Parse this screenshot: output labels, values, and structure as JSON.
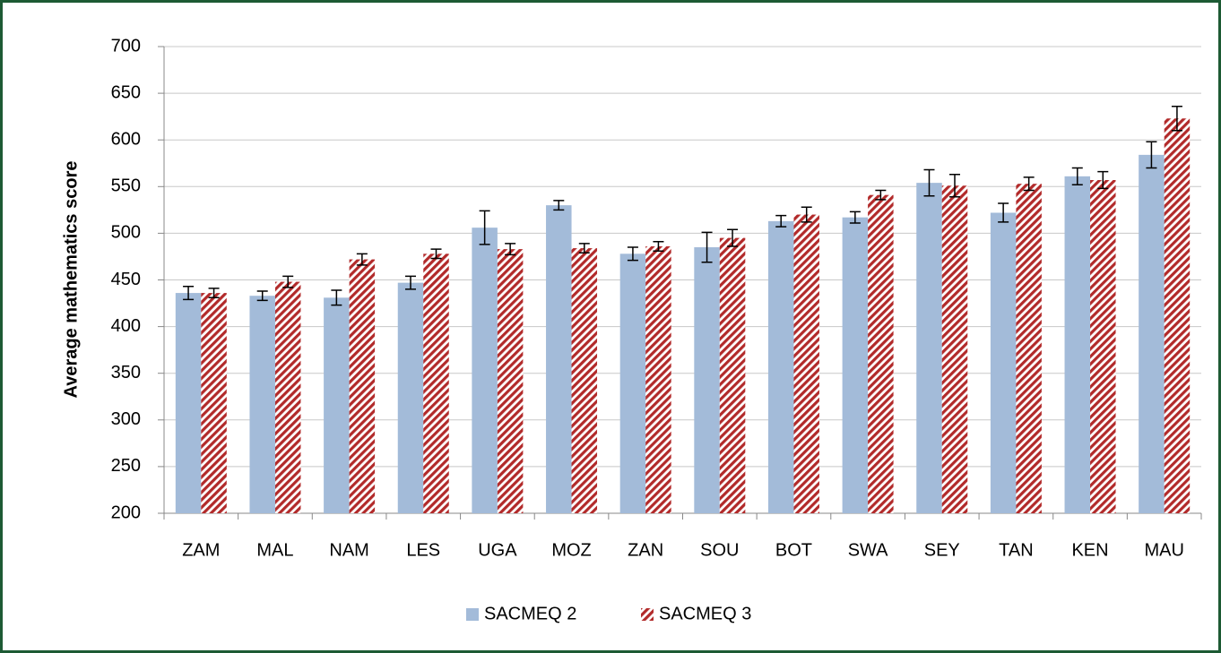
{
  "chart_data": {
    "type": "bar",
    "y_label": "Average mathematics score",
    "categories": [
      "ZAM",
      "MAL",
      "NAM",
      "LES",
      "UGA",
      "MOZ",
      "ZAN",
      "SOU",
      "BOT",
      "SWA",
      "SEY",
      "TAN",
      "KEN",
      "MAU"
    ],
    "series": [
      {
        "name": "SACMEQ 2",
        "color": "#a3bbd9",
        "hatch": false,
        "values": [
          436,
          433,
          431,
          447,
          506,
          530,
          478,
          485,
          513,
          517,
          554,
          522,
          561,
          584
        ],
        "errors": [
          7,
          5,
          8,
          7,
          18,
          5,
          7,
          16,
          6,
          6,
          14,
          10,
          9,
          14
        ]
      },
      {
        "name": "SACMEQ 3",
        "color": "#b22a2a",
        "hatch": true,
        "values": [
          436,
          448,
          472,
          478,
          483,
          484,
          486,
          495,
          520,
          541,
          551,
          553,
          557,
          623
        ],
        "errors": [
          5,
          6,
          6,
          5,
          6,
          5,
          5,
          9,
          8,
          5,
          12,
          7,
          9,
          13
        ]
      }
    ],
    "ylim": [
      200,
      700
    ],
    "yticks": [
      200,
      250,
      300,
      350,
      400,
      450,
      500,
      550,
      600,
      650,
      700
    ],
    "grid": true,
    "legend": "bottom"
  }
}
